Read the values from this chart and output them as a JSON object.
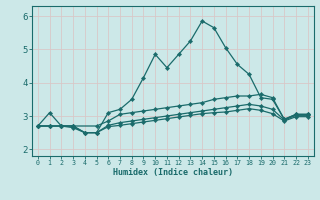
{
  "background_color": "#cce8e8",
  "grid_color": "#b8d8d8",
  "line_color": "#1a6b6b",
  "xlabel": "Humidex (Indice chaleur)",
  "ylim": [
    1.8,
    6.3
  ],
  "xlim": [
    -0.5,
    23.5
  ],
  "yticks": [
    2,
    3,
    4,
    5,
    6
  ],
  "xticks": [
    0,
    1,
    2,
    3,
    4,
    5,
    6,
    7,
    8,
    9,
    10,
    11,
    12,
    13,
    14,
    15,
    16,
    17,
    18,
    19,
    20,
    21,
    22,
    23
  ],
  "series1_x": [
    0,
    1,
    2,
    3,
    4,
    5,
    6,
    7,
    8,
    9,
    10,
    11,
    12,
    13,
    14,
    15,
    16,
    17,
    18,
    19,
    20,
    21,
    22,
    23
  ],
  "series1_y": [
    2.7,
    3.1,
    2.7,
    2.65,
    2.5,
    2.5,
    3.1,
    3.2,
    3.5,
    4.15,
    4.85,
    4.45,
    4.85,
    5.25,
    5.85,
    5.65,
    5.05,
    4.55,
    4.25,
    3.55,
    3.5,
    2.9,
    3.05,
    3.05
  ],
  "series2_x": [
    0,
    1,
    2,
    3,
    5,
    6,
    7,
    8,
    9,
    10,
    11,
    12,
    13,
    14,
    15,
    16,
    17,
    18,
    19,
    20,
    21,
    22,
    23
  ],
  "series2_y": [
    2.7,
    2.7,
    2.7,
    2.7,
    2.7,
    2.85,
    3.05,
    3.1,
    3.15,
    3.2,
    3.25,
    3.3,
    3.35,
    3.4,
    3.5,
    3.55,
    3.6,
    3.6,
    3.65,
    3.55,
    2.9,
    3.05,
    3.05
  ],
  "series3_x": [
    0,
    1,
    2,
    3,
    4,
    5,
    6,
    7,
    8,
    9,
    10,
    11,
    12,
    13,
    14,
    15,
    16,
    17,
    18,
    19,
    20,
    21,
    22,
    23
  ],
  "series3_y": [
    2.7,
    2.7,
    2.7,
    2.7,
    2.5,
    2.5,
    2.72,
    2.8,
    2.85,
    2.9,
    2.95,
    3.0,
    3.05,
    3.1,
    3.15,
    3.2,
    3.25,
    3.3,
    3.35,
    3.3,
    3.2,
    2.88,
    3.02,
    3.02
  ],
  "series4_x": [
    0,
    1,
    2,
    3,
    4,
    5,
    6,
    7,
    8,
    9,
    10,
    11,
    12,
    13,
    14,
    15,
    16,
    17,
    18,
    19,
    20,
    21,
    22,
    23
  ],
  "series4_y": [
    2.7,
    2.7,
    2.7,
    2.7,
    2.5,
    2.5,
    2.68,
    2.72,
    2.77,
    2.82,
    2.87,
    2.92,
    2.97,
    3.02,
    3.07,
    3.1,
    3.12,
    3.17,
    3.22,
    3.17,
    3.07,
    2.85,
    2.98,
    2.98
  ]
}
